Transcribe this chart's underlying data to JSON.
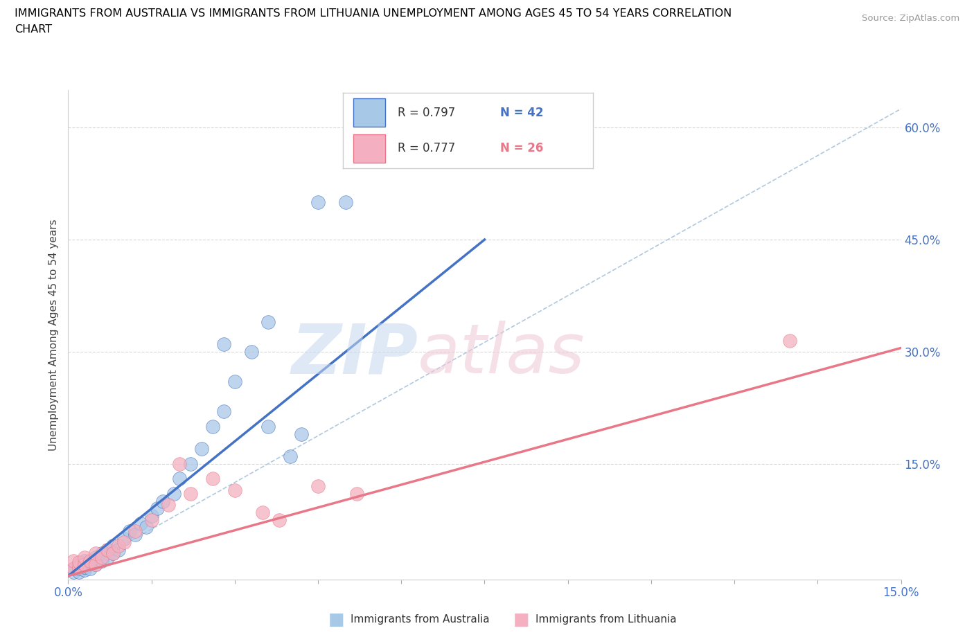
{
  "title_line1": "IMMIGRANTS FROM AUSTRALIA VS IMMIGRANTS FROM LITHUANIA UNEMPLOYMENT AMONG AGES 45 TO 54 YEARS CORRELATION",
  "title_line2": "CHART",
  "source": "Source: ZipAtlas.com",
  "ylabel_label": "Unemployment Among Ages 45 to 54 years",
  "xlim": [
    0.0,
    0.15
  ],
  "ylim": [
    -0.005,
    0.65
  ],
  "color_australia": "#a8c8e8",
  "color_lithuania": "#f4b0c0",
  "color_australia_line": "#4472c4",
  "color_lithuania_line": "#e87888",
  "color_ref_line": "#b0c8e0",
  "grid_color": "#d8d8d8",
  "australia_x": [
    0.001,
    0.001,
    0.002,
    0.002,
    0.002,
    0.003,
    0.003,
    0.003,
    0.004,
    0.004,
    0.005,
    0.005,
    0.006,
    0.006,
    0.007,
    0.007,
    0.008,
    0.008,
    0.009,
    0.01,
    0.011,
    0.012,
    0.013,
    0.014,
    0.015,
    0.016,
    0.017,
    0.019,
    0.02,
    0.022,
    0.024,
    0.026,
    0.028,
    0.03,
    0.033,
    0.036,
    0.04,
    0.042,
    0.045,
    0.05,
    0.036,
    0.028
  ],
  "australia_y": [
    0.005,
    0.01,
    0.005,
    0.01,
    0.015,
    0.008,
    0.012,
    0.02,
    0.01,
    0.018,
    0.015,
    0.025,
    0.02,
    0.03,
    0.025,
    0.035,
    0.03,
    0.04,
    0.035,
    0.05,
    0.06,
    0.055,
    0.07,
    0.065,
    0.08,
    0.09,
    0.1,
    0.11,
    0.13,
    0.15,
    0.17,
    0.2,
    0.22,
    0.26,
    0.3,
    0.2,
    0.16,
    0.19,
    0.5,
    0.5,
    0.34,
    0.31
  ],
  "australia_line_x": [
    0.0,
    0.075
  ],
  "australia_line_y": [
    0.0,
    0.45
  ],
  "lithuania_x": [
    0.001,
    0.001,
    0.002,
    0.002,
    0.003,
    0.003,
    0.004,
    0.005,
    0.005,
    0.006,
    0.007,
    0.008,
    0.009,
    0.01,
    0.012,
    0.015,
    0.018,
    0.022,
    0.026,
    0.03,
    0.035,
    0.038,
    0.045,
    0.052,
    0.02,
    0.13
  ],
  "lithuania_y": [
    0.01,
    0.02,
    0.012,
    0.018,
    0.015,
    0.025,
    0.02,
    0.015,
    0.03,
    0.025,
    0.035,
    0.03,
    0.04,
    0.045,
    0.06,
    0.075,
    0.095,
    0.11,
    0.13,
    0.115,
    0.085,
    0.075,
    0.12,
    0.11,
    0.15,
    0.315
  ],
  "lithuania_line_x": [
    0.0,
    0.15
  ],
  "lithuania_line_y": [
    0.0,
    0.305
  ],
  "ref_line_x": [
    0.0,
    0.15
  ],
  "ref_line_y": [
    0.0,
    0.625
  ],
  "legend_r1": "R = 0.797",
  "legend_n1": "N = 42",
  "legend_r2": "R = 0.777",
  "legend_n2": "N = 26",
  "yticks": [
    0.0,
    0.15,
    0.3,
    0.45,
    0.6
  ],
  "ytick_labels_right": [
    "",
    "15.0%",
    "30.0%",
    "45.0%",
    "60.0%"
  ],
  "xtick_positions": [
    0.0,
    0.015,
    0.03,
    0.045,
    0.06,
    0.075,
    0.09,
    0.105,
    0.12,
    0.135,
    0.15
  ]
}
